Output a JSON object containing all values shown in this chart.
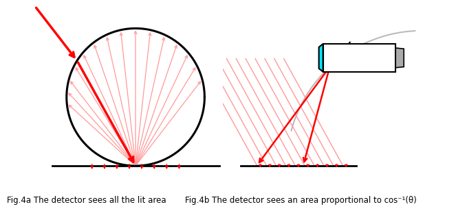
{
  "background": "#ffffff",
  "circle_color": "#000000",
  "line_color": "#000000",
  "red_color": "#ff0000",
  "pink_color": "#ff9999",
  "gray_color": "#bbbbbb",
  "fig4a_caption": "Fig.4a The detector sees all the lit area",
  "fig4b_caption": "Fig.4b The detector sees an area proportional to cos⁻¹(θ)",
  "caption_fontsize": 8.5
}
